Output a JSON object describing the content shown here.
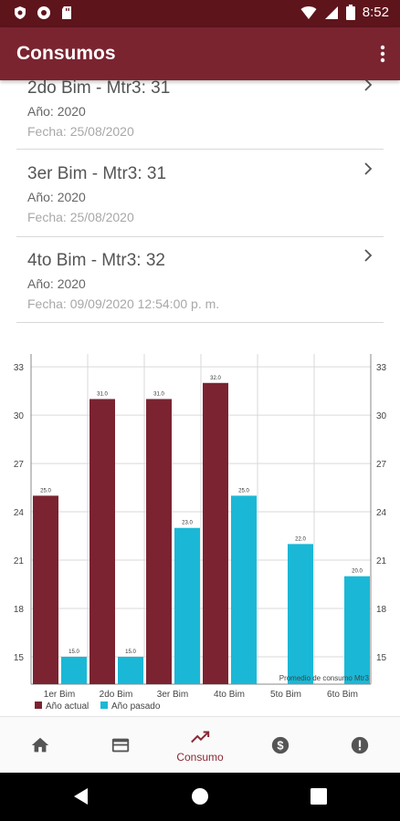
{
  "status_bar": {
    "time": "8:52"
  },
  "app_bar": {
    "title": "Consumos"
  },
  "list": {
    "items": [
      {
        "title": "2do Bim - Mtr3: 31",
        "year": "Año: 2020",
        "date": "Fecha: 25/08/2020"
      },
      {
        "title": "3er Bim - Mtr3: 31",
        "year": "Año: 2020",
        "date": "Fecha: 25/08/2020"
      },
      {
        "title": "4to Bim - Mtr3: 32",
        "year": "Año: 2020",
        "date": "Fecha: 09/09/2020 12:54:00 p. m."
      }
    ]
  },
  "chart_data": {
    "type": "bar",
    "categories": [
      "1er Bim",
      "2do Bim",
      "3er Bim",
      "4to Bim",
      "5to Bim",
      "6to Bim"
    ],
    "series": [
      {
        "name": "Año actual",
        "color": "#7b2330",
        "values": [
          25.0,
          31.0,
          31.0,
          32.0,
          null,
          null
        ],
        "labels": [
          "25.0",
          "31.0",
          "31.0",
          "32.0",
          "",
          ""
        ]
      },
      {
        "name": "Año pasado",
        "color": "#1ab8d6",
        "values": [
          15.0,
          15.0,
          23.0,
          25.0,
          22.0,
          20.0
        ],
        "labels": [
          "15.0",
          "15.0",
          "23.0",
          "25.0",
          "22.0",
          "20.0"
        ]
      }
    ],
    "yticks": [
      "15",
      "18",
      "21",
      "24",
      "27",
      "30",
      "33"
    ],
    "ylim": [
      13.3,
      33.8
    ],
    "grid": true,
    "legend": "bottom-left",
    "description": "Promedio de consumo Mtr3"
  },
  "bottom_nav": {
    "items": [
      {
        "icon": "home-icon",
        "label": ""
      },
      {
        "icon": "credit-card-icon",
        "label": ""
      },
      {
        "icon": "trending-up-icon",
        "label": "Consumo"
      },
      {
        "icon": "dollar-icon",
        "label": ""
      },
      {
        "icon": "alert-icon",
        "label": ""
      }
    ],
    "active_color": "#8a2a36"
  }
}
